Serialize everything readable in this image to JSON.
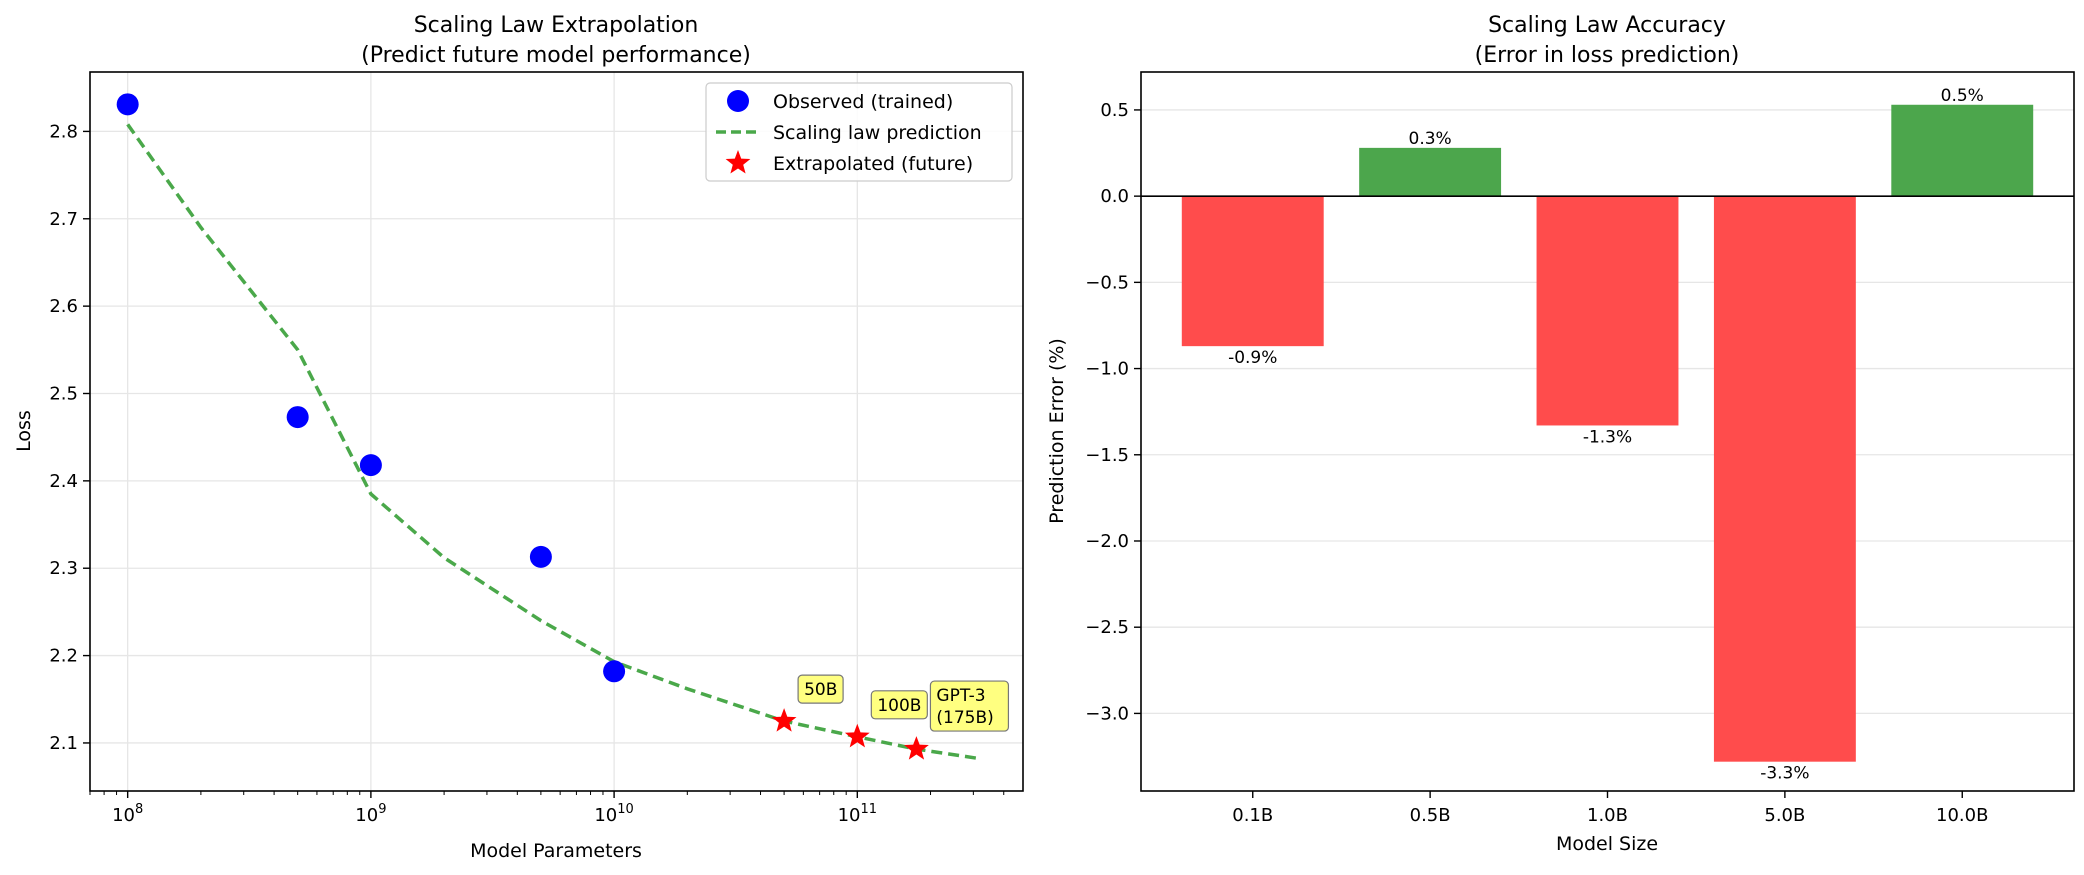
{
  "chart_data": [
    {
      "type": "scatter",
      "title_line1": "Scaling Law Extrapolation",
      "title_line2": "(Predict future model performance)",
      "xlabel": "Model Parameters",
      "ylabel": "Loss",
      "xscale": "log",
      "xlim": [
        70000000.0,
        480000000000.0
      ],
      "ylim": [
        2.045,
        2.868
      ],
      "x_ticks": [
        {
          "value": 100000000.0,
          "base": "10",
          "exp": "8"
        },
        {
          "value": 1000000000.0,
          "base": "10",
          "exp": "9"
        },
        {
          "value": 10000000000.0,
          "base": "10",
          "exp": "10"
        },
        {
          "value": 100000000000.0,
          "base": "10",
          "exp": "11"
        }
      ],
      "y_ticks": [
        "2.1",
        "2.2",
        "2.3",
        "2.4",
        "2.5",
        "2.6",
        "2.7",
        "2.8"
      ],
      "grid": true,
      "legend": {
        "position": "top-right",
        "entries": [
          {
            "label": "Observed (trained)",
            "marker": "circle",
            "color": "#0000ff"
          },
          {
            "label": "Scaling law prediction",
            "marker": "dashed-line",
            "color": "#4aa84a"
          },
          {
            "label": "Extrapolated (future)",
            "marker": "star",
            "color": "#ff0000"
          }
        ]
      },
      "series": [
        {
          "name": "Observed (trained)",
          "kind": "scatter",
          "color": "#0000ff",
          "points": [
            {
              "x": 100000000.0,
              "y": 2.831
            },
            {
              "x": 500000000.0,
              "y": 2.473
            },
            {
              "x": 1000000000.0,
              "y": 2.418
            },
            {
              "x": 5000000000.0,
              "y": 2.313
            },
            {
              "x": 10000000000.0,
              "y": 2.182
            }
          ]
        },
        {
          "name": "Scaling law prediction",
          "kind": "line",
          "style": "dashed",
          "color": "#4aa84a",
          "points": [
            {
              "x": 100000000.0,
              "y": 2.808
            },
            {
              "x": 200000000.0,
              "y": 2.69
            },
            {
              "x": 500000000.0,
              "y": 2.55
            },
            {
              "x": 1000000000.0,
              "y": 2.385
            },
            {
              "x": 2000000000.0,
              "y": 2.312
            },
            {
              "x": 5000000000.0,
              "y": 2.24
            },
            {
              "x": 10000000000.0,
              "y": 2.193
            },
            {
              "x": 20000000000.0,
              "y": 2.162
            },
            {
              "x": 50000000000.0,
              "y": 2.125
            },
            {
              "x": 100000000000.0,
              "y": 2.107
            },
            {
              "x": 175000000000.0,
              "y": 2.093
            },
            {
              "x": 320000000000.0,
              "y": 2.082
            }
          ]
        },
        {
          "name": "Extrapolated (future)",
          "kind": "scatter",
          "marker": "star",
          "color": "#ff0000",
          "points": [
            {
              "x": 50000000000.0,
              "y": 2.125
            },
            {
              "x": 100000000000.0,
              "y": 2.107
            },
            {
              "x": 175000000000.0,
              "y": 2.093
            }
          ]
        }
      ],
      "annotations": [
        {
          "x": 50000000000.0,
          "y": 2.125,
          "lines": [
            "50B"
          ]
        },
        {
          "x": 100000000000.0,
          "y": 2.107,
          "lines": [
            "100B"
          ]
        },
        {
          "x": 175000000000.0,
          "y": 2.093,
          "lines": [
            "GPT-3",
            "(175B)"
          ]
        }
      ],
      "annotation_color": "#ffff80"
    },
    {
      "type": "bar",
      "title_line1": "Scaling Law Accuracy",
      "title_line2": "(Error in loss prediction)",
      "xlabel": "Model Size",
      "ylabel": "Prediction Error (%)",
      "categories": [
        "0.1B",
        "0.5B",
        "1.0B",
        "5.0B",
        "10.0B"
      ],
      "values": [
        -0.87,
        0.28,
        -1.33,
        -3.28,
        0.53
      ],
      "data_labels": [
        "-0.9%",
        "0.3%",
        "-1.3%",
        "-3.3%",
        "0.5%"
      ],
      "ylim": [
        -3.45,
        0.72
      ],
      "y_ticks": [
        {
          "value": 0.5,
          "label": "0.5"
        },
        {
          "value": 0.0,
          "label": "0.0"
        },
        {
          "value": -0.5,
          "label": "−0.5"
        },
        {
          "value": -1.0,
          "label": "−1.0"
        },
        {
          "value": -1.5,
          "label": "−1.5"
        },
        {
          "value": -2.0,
          "label": "−2.0"
        },
        {
          "value": -2.5,
          "label": "−2.5"
        },
        {
          "value": -3.0,
          "label": "−3.0"
        }
      ],
      "grid": true,
      "colors": {
        "positive": "#4ca64c",
        "negative": "#ff4c4c"
      }
    }
  ]
}
